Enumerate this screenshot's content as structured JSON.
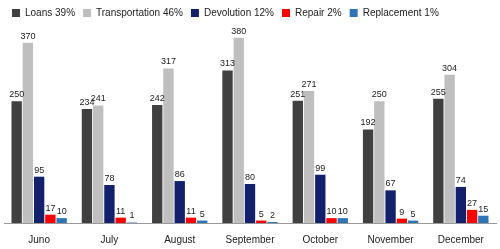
{
  "chart_data": {
    "type": "bar",
    "categories": [
      "Juno",
      "July",
      "August",
      "September",
      "October",
      "November",
      "December"
    ],
    "series": [
      {
        "name": "Loans 39%",
        "color": "#404040",
        "values": [
          250,
          234,
          242,
          313,
          251,
          192,
          255
        ]
      },
      {
        "name": "Transportation 46%",
        "color": "#bfbfbf",
        "values": [
          370,
          241,
          317,
          380,
          271,
          250,
          304
        ]
      },
      {
        "name": "Devolution 12%",
        "color": "#13206b",
        "values": [
          95,
          78,
          86,
          80,
          99,
          67,
          74
        ]
      },
      {
        "name": "Repair 2%",
        "color": "#ff0000",
        "values": [
          17,
          11,
          11,
          5,
          10,
          9,
          27
        ]
      },
      {
        "name": "Replacement 1%",
        "color": "#2e75b6",
        "values": [
          10,
          1,
          5,
          2,
          10,
          5,
          15
        ]
      }
    ],
    "ylim": [
      0,
      400
    ],
    "grid": false,
    "legend": "top",
    "data_labels": true,
    "tick_labels": "x"
  }
}
